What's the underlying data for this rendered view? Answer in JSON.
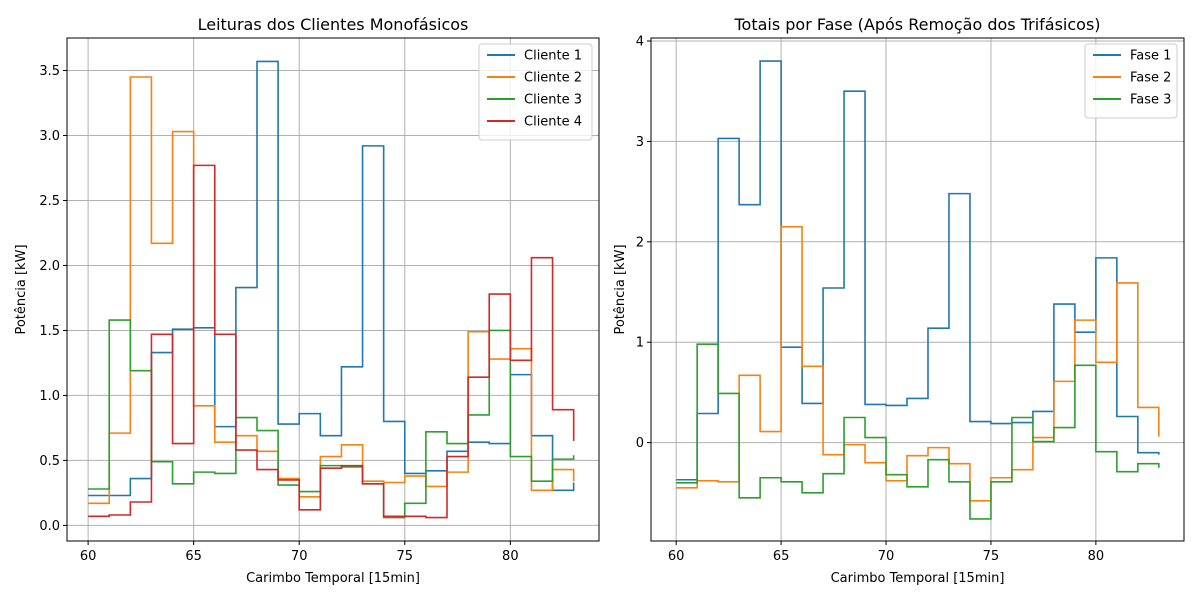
{
  "chart_data": [
    {
      "type": "line",
      "drawstyle": "steps-post",
      "title": "Leituras dos Clientes Monofásicos",
      "xlabel": "Carimbo Temporal [15min]",
      "ylabel": "Potência [kW]",
      "xlim": [
        59,
        84.2
      ],
      "ylim": [
        -0.12,
        3.75
      ],
      "xticks": [
        60,
        65,
        70,
        75,
        80
      ],
      "yticks": [
        0.0,
        0.5,
        1.0,
        1.5,
        2.0,
        2.5,
        3.0,
        3.5
      ],
      "ytick_labels": [
        "0.0",
        "0.5",
        "1.0",
        "1.5",
        "2.0",
        "2.5",
        "3.0",
        "3.5"
      ],
      "grid": true,
      "legend": "top-right",
      "x": [
        60,
        61,
        62,
        63,
        64,
        65,
        66,
        67,
        68,
        69,
        70,
        71,
        72,
        73,
        74,
        75,
        76,
        77,
        78,
        79,
        80,
        81,
        82,
        83
      ],
      "series": [
        {
          "name": "Cliente 1",
          "color": "#1f77b4",
          "values": [
            0.23,
            0.23,
            0.36,
            1.33,
            1.51,
            1.52,
            0.76,
            1.83,
            3.57,
            0.78,
            0.86,
            0.69,
            1.22,
            2.92,
            0.8,
            0.4,
            0.42,
            0.57,
            0.64,
            0.63,
            1.16,
            0.69,
            0.27,
            0.33
          ]
        },
        {
          "name": "Cliente 2",
          "color": "#ff7f0e",
          "values": [
            0.17,
            0.71,
            3.45,
            2.17,
            3.03,
            0.92,
            0.64,
            0.69,
            0.57,
            0.36,
            0.22,
            0.53,
            0.62,
            0.34,
            0.33,
            0.38,
            0.3,
            0.41,
            1.49,
            1.28,
            1.36,
            0.27,
            0.43,
            0.34
          ]
        },
        {
          "name": "Cliente 3",
          "color": "#2ca02c",
          "values": [
            0.28,
            1.58,
            1.19,
            0.49,
            0.32,
            0.41,
            0.4,
            0.83,
            0.73,
            0.31,
            0.26,
            0.46,
            0.45,
            0.32,
            0.06,
            0.17,
            0.72,
            0.63,
            0.85,
            1.5,
            0.53,
            0.34,
            0.51,
            0.54
          ]
        },
        {
          "name": "Cliente 4",
          "color": "#d62728",
          "values": [
            0.07,
            0.08,
            0.18,
            1.47,
            0.63,
            2.77,
            1.47,
            0.58,
            0.43,
            0.35,
            0.12,
            0.44,
            0.46,
            0.32,
            0.07,
            0.07,
            0.06,
            0.53,
            1.14,
            1.78,
            1.27,
            2.06,
            0.89,
            0.65
          ]
        }
      ]
    },
    {
      "type": "line",
      "drawstyle": "steps-post",
      "title": "Totais por Fase (Após Remoção dos Trifásicos)",
      "xlabel": "Carimbo Temporal [15min]",
      "ylabel": "Potência [kW]",
      "xlim": [
        58.8,
        84.2
      ],
      "ylim": [
        -0.98,
        4.03
      ],
      "xticks": [
        60,
        65,
        70,
        75,
        80
      ],
      "yticks": [
        0,
        1,
        2,
        3,
        4
      ],
      "ytick_labels": [
        "0",
        "1",
        "2",
        "3",
        "4"
      ],
      "grid": true,
      "legend": "top-right",
      "x": [
        60,
        61,
        62,
        63,
        64,
        65,
        66,
        67,
        68,
        69,
        70,
        71,
        72,
        73,
        74,
        75,
        76,
        77,
        78,
        79,
        80,
        81,
        82,
        83
      ],
      "series": [
        {
          "name": "Fase 1",
          "color": "#1f77b4",
          "values": [
            -0.37,
            0.29,
            3.03,
            2.37,
            3.8,
            0.95,
            0.39,
            1.54,
            3.5,
            0.38,
            0.37,
            0.44,
            1.14,
            2.48,
            0.21,
            0.19,
            0.2,
            0.31,
            1.38,
            1.1,
            1.84,
            0.26,
            -0.1,
            -0.12
          ]
        },
        {
          "name": "Fase 2",
          "color": "#ff7f0e",
          "values": [
            -0.45,
            -0.38,
            -0.39,
            0.67,
            0.11,
            2.15,
            0.76,
            -0.12,
            -0.02,
            -0.2,
            -0.38,
            -0.13,
            -0.05,
            -0.21,
            -0.58,
            -0.35,
            -0.27,
            0.05,
            0.61,
            1.22,
            0.8,
            1.59,
            0.35,
            0.06
          ]
        },
        {
          "name": "Fase 3",
          "color": "#2ca02c",
          "values": [
            -0.4,
            0.98,
            0.49,
            -0.55,
            -0.35,
            -0.39,
            -0.5,
            -0.31,
            0.25,
            0.05,
            -0.32,
            -0.44,
            -0.17,
            -0.39,
            -0.76,
            -0.39,
            0.25,
            0.01,
            0.15,
            0.77,
            -0.09,
            -0.29,
            -0.21,
            -0.25
          ]
        }
      ]
    }
  ]
}
